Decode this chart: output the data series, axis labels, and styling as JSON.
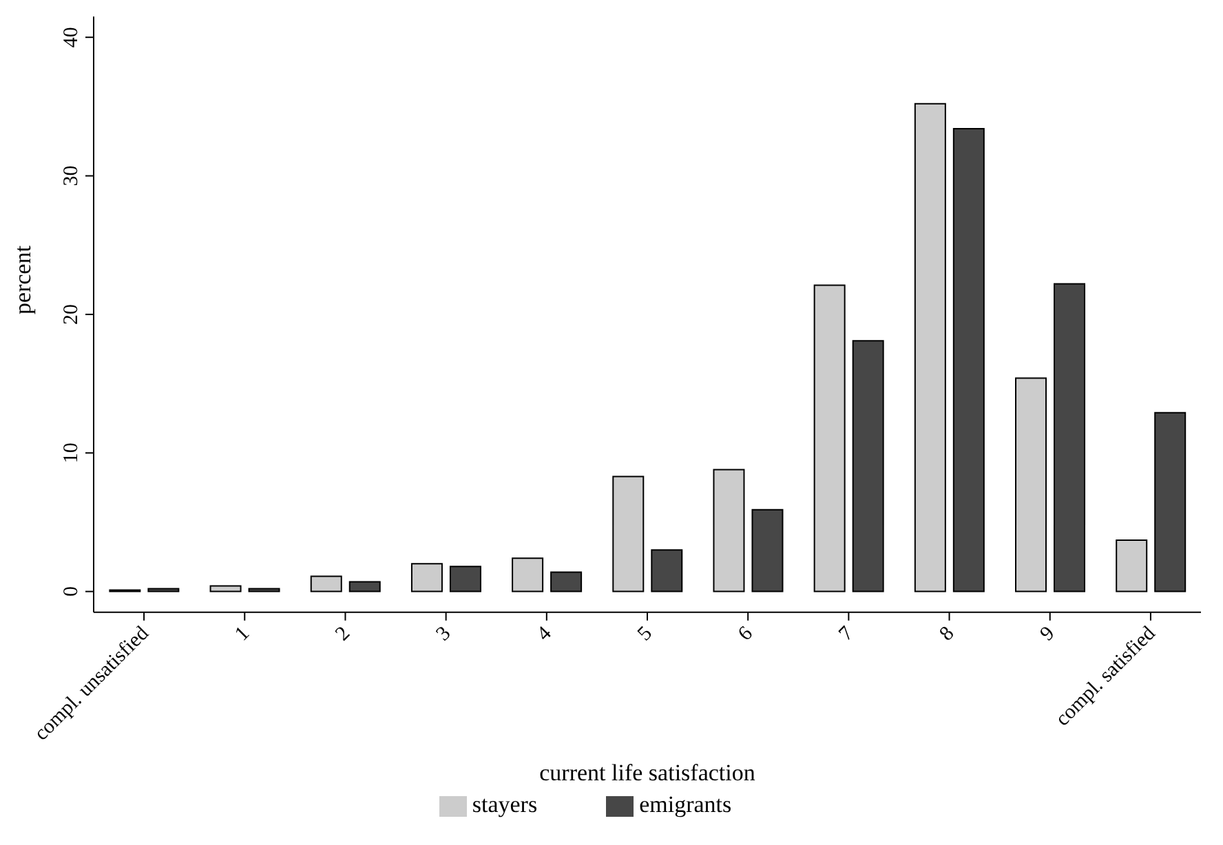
{
  "chart_data": {
    "type": "bar",
    "xlabel": "current life satisfaction",
    "ylabel": "percent",
    "categories": [
      "compl. unsatisfied",
      "1",
      "2",
      "3",
      "4",
      "5",
      "6",
      "7",
      "8",
      "9",
      "compl. satisfied"
    ],
    "series": [
      {
        "name": "stayers",
        "color": "#cccccc",
        "values": [
          0.1,
          0.4,
          1.1,
          2.0,
          2.4,
          8.3,
          8.8,
          22.1,
          35.2,
          15.4,
          3.7
        ]
      },
      {
        "name": "emigrants",
        "color": "#474747",
        "values": [
          0.2,
          0.2,
          0.7,
          1.8,
          1.4,
          3.0,
          5.9,
          18.1,
          33.4,
          22.2,
          12.9
        ]
      }
    ],
    "ylim": [
      -1.5,
      41.5
    ],
    "yticks": [
      0,
      10,
      20,
      30,
      40
    ],
    "grid": false,
    "legend": "bottom"
  }
}
